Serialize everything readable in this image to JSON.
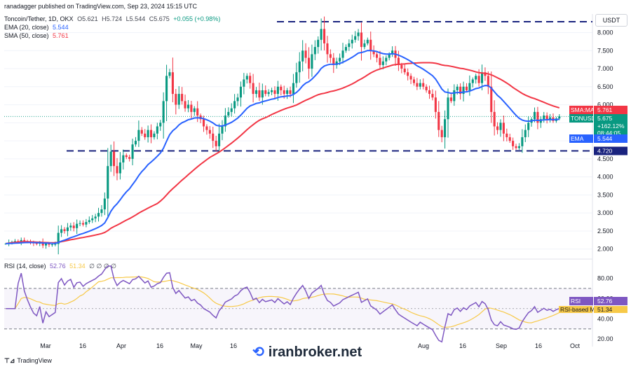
{
  "publisher_line": "ranadagger published on TradingView.com, Sep 23, 2024 15:15 UTC",
  "symbol_line": {
    "pair": "Toncoin/Tether, 1D, OKX",
    "o": "O5.621",
    "h": "H5.724",
    "l": "L5.544",
    "c": "C5.675",
    "chg": "+0.055 (+0.98%)"
  },
  "ema_line": {
    "label": "EMA (20, close)",
    "value": "5.544"
  },
  "sma_line": {
    "label": "SMA (50, close)",
    "value": "5.761"
  },
  "rsi_line": {
    "label": "RSI (14, close)",
    "v1": "52.76",
    "v2": "51.34",
    "extras": "∅ ∅ ∅ ∅"
  },
  "currency": "USDT",
  "footer": "TradingView",
  "watermark": "iranbroker.net",
  "colors": {
    "up": "#089981",
    "down": "#f23645",
    "ema": "#2962ff",
    "sma": "#f23645",
    "rsi": "#7e57c2",
    "rsi_ma": "#f7c948"
  },
  "chart_data": [
    {
      "type": "candlestick",
      "symbol": "TONUSDT",
      "y_ticks": [
        2.0,
        2.5,
        3.0,
        3.5,
        4.0,
        4.5,
        5.0,
        5.5,
        6.0,
        6.5,
        7.0,
        7.5,
        8.0
      ],
      "ylim": [
        1.82,
        8.32
      ],
      "x_labels": [
        "Mar",
        "16",
        "Apr",
        "16",
        "May",
        "16",
        "Aug",
        "16",
        "Sep",
        "16",
        "Oct"
      ],
      "horizontal_levels": [
        8.3,
        4.72
      ],
      "price_tags": [
        {
          "label": "SMA:MA",
          "value": "5.761"
        },
        {
          "label": "TONUSDT",
          "value": "5.675",
          "change": "+162.12%",
          "countdown": "08:44:05"
        },
        {
          "label": "EMA",
          "value": "5.544"
        },
        {
          "label": "",
          "value": "4.720"
        }
      ],
      "closes": [
        2.15,
        2.18,
        2.2,
        2.22,
        2.2,
        2.25,
        2.22,
        2.2,
        2.18,
        2.16,
        2.15,
        2.18,
        2.1,
        2.15,
        2.12,
        2.13,
        2.14,
        2.45,
        2.55,
        2.5,
        2.6,
        2.65,
        2.58,
        2.7,
        2.72,
        2.68,
        2.75,
        2.8,
        2.85,
        2.9,
        3.0,
        3.1,
        3.4,
        4.3,
        4.7,
        4.3,
        4.1,
        4.4,
        4.6,
        4.55,
        4.5,
        4.9,
        5.0,
        5.3,
        5.2,
        5.1,
        5.3,
        5.1,
        5.2,
        5.4,
        5.5,
        6.1,
        6.8,
        6.9,
        6.3,
        6.0,
        6.3,
        6.1,
        5.9,
        6.0,
        5.8,
        5.9,
        5.7,
        5.6,
        5.4,
        5.3,
        5.2,
        5.0,
        4.85,
        5.2,
        5.4,
        5.7,
        5.8,
        5.9,
        6.1,
        6.2,
        6.5,
        6.7,
        6.8,
        6.6,
        6.3,
        6.4,
        6.2,
        6.4,
        6.3,
        6.35,
        6.4,
        6.3,
        6.5,
        6.4,
        6.3,
        6.4,
        6.3,
        6.6,
        6.9,
        7.2,
        7.5,
        7.3,
        7.0,
        7.4,
        7.6,
        7.8,
        8.1,
        7.7,
        7.4,
        7.3,
        7.1,
        7.2,
        7.3,
        7.5,
        7.6,
        7.7,
        7.8,
        7.9,
        8.0,
        7.6,
        7.7,
        7.8,
        7.5,
        7.4,
        7.3,
        7.1,
        7.2,
        7.3,
        7.4,
        7.5,
        7.3,
        7.1,
        7.0,
        6.9,
        6.8,
        6.7,
        6.6,
        6.5,
        6.6,
        6.5,
        6.4,
        6.3,
        6.2,
        5.8,
        5.3,
        5.1,
        5.6,
        6.2,
        6.1,
        6.4,
        6.5,
        6.3,
        6.5,
        6.4,
        6.6,
        6.7,
        6.8,
        6.6,
        6.9,
        6.8,
        6.5,
        5.8,
        5.4,
        5.3,
        5.5,
        5.2,
        5.1,
        5.0,
        4.85,
        4.8,
        4.85,
        5.1,
        5.3,
        5.5,
        5.6,
        5.8,
        5.5,
        5.6,
        5.7,
        5.6,
        5.65,
        5.55,
        5.62,
        5.675
      ]
    },
    {
      "type": "line",
      "name": "RSI",
      "y_ticks": [
        20,
        40,
        60,
        80
      ],
      "ylim": [
        16,
        92
      ],
      "bands": [
        70,
        30
      ],
      "last_value": "52.76",
      "ma_last_value": "51.34",
      "tag_labels": [
        "RSI",
        "RSI-based MA"
      ]
    }
  ]
}
